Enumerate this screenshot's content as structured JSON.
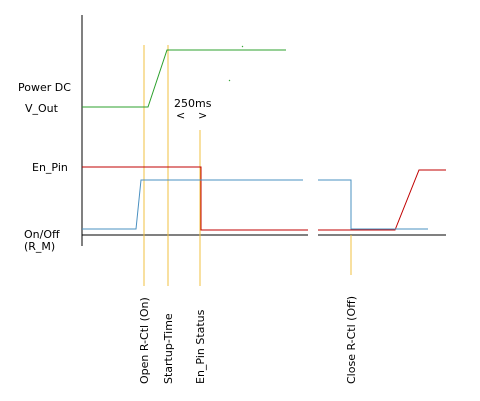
{
  "signals": {
    "power_dc": "Power DC",
    "v_out": "V_Out",
    "en_pin": "En_Pin",
    "on_off": "On/Off",
    "r_m": "(R_M)"
  },
  "interval": {
    "label": "250ms",
    "left": "<",
    "right": ">"
  },
  "markers": [
    "Open R-Ctl (On)",
    "Startup-Time",
    "En_Pin Status",
    "Close R-Ctl (Off)"
  ]
}
